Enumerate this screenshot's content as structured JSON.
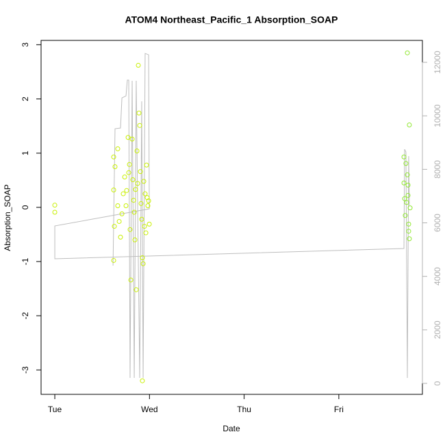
{
  "chart_data": {
    "type": "scatter",
    "title": "ATOM4 Northeast_Pacific_1 Absorption_SOAP",
    "x_label": "Date",
    "y_label": "Absorption_SOAP",
    "xlim": [
      -0.145,
      3.883
    ],
    "xticks": [
      {
        "value": 0,
        "label": "Tue"
      },
      {
        "value": 1,
        "label": "Wed"
      },
      {
        "value": 2,
        "label": "Thu"
      },
      {
        "value": 3,
        "label": "Fri"
      }
    ],
    "ylim": [
      -3.45,
      3.08
    ],
    "yticks": [
      -3,
      -2,
      -1,
      0,
      1,
      2,
      3
    ],
    "y2lim": [
      -410,
      12820
    ],
    "y2ticks": [
      0,
      2000,
      4000,
      6000,
      8000,
      10000,
      12000
    ],
    "y2_color": "#b0b0b0",
    "series": [
      {
        "mode": "points",
        "color": "#c8f000",
        "x": [
          0,
          0,
          0.622,
          0.636,
          0.622,
          0.629,
          0.622,
          0.665,
          0.665,
          0.68,
          0.694,
          0.709,
          0.723,
          0.738,
          0.752,
          0.759,
          0.774,
          0.781,
          0.788,
          0.795,
          0.803,
          0.817,
          0.824,
          0.832,
          0.839,
          0.846,
          0.853,
          0.86,
          0.868,
          0.875,
          0.882,
          0.889,
          0.897,
          0.904,
          0.911,
          0.918,
          0.925,
          0.925,
          0.933,
          0.94,
          0.947,
          0.954,
          0.962,
          0.969,
          0.976,
          0.983,
          0.991,
          0.998
        ],
        "values": [
          0.04,
          -0.09,
          0.93,
          0.75,
          0.32,
          -0.35,
          -0.98,
          1.08,
          0.03,
          -0.26,
          -0.55,
          -0.12,
          0.25,
          0.56,
          0.03,
          0.31,
          1.29,
          0.64,
          0.79,
          -0.41,
          -1.34,
          1.26,
          0.51,
          0.13,
          -0.09,
          -0.6,
          0.33,
          -1.52,
          1.04,
          0.44,
          2.62,
          1.74,
          1.51,
          0.66,
          0.07,
          -0.22,
          -0.93,
          -3.2,
          -1.04,
          0.48,
          -0.35,
          0.25,
          -0.47,
          0.78,
          0.18,
          0.03,
          0.12,
          -0.31
        ]
      },
      {
        "mode": "points",
        "color": "#90e830",
        "x": [
          3.688,
          3.688,
          3.695,
          3.702,
          3.709,
          3.716,
          3.724,
          3.724,
          3.731,
          3.738,
          3.738,
          3.745,
          3.745,
          3.753,
          3.731
        ],
        "values": [
          0.93,
          0.45,
          0.16,
          -0.15,
          0.81,
          0.09,
          2.85,
          0.6,
          0.22,
          -0.31,
          -0.44,
          1.52,
          -0.58,
          -0.01,
          0.41
        ]
      },
      {
        "mode": "line",
        "axis": "y2",
        "color": "#bdbdbd",
        "x": [
          0.615,
          0.636,
          0.694,
          0.709,
          0.752,
          0.766,
          0.781,
          0.795,
          0.817,
          0.839,
          0.86,
          0.875,
          0.897,
          0.918,
          0.933,
          0.954,
          0.991,
          0.998,
          0,
          0,
          3.688,
          3.695,
          3.709,
          3.724,
          3.738,
          3.745
        ],
        "values": [
          4401,
          9518,
          9544,
          10669,
          10746,
          11335,
          11335,
          205,
          11309,
          205,
          11309,
          6652,
          205,
          10541,
          205,
          12332,
          12281,
          6524,
          5885,
          4657,
          5040,
          8750,
          8648,
          205,
          8494,
          6652
        ]
      }
    ]
  }
}
